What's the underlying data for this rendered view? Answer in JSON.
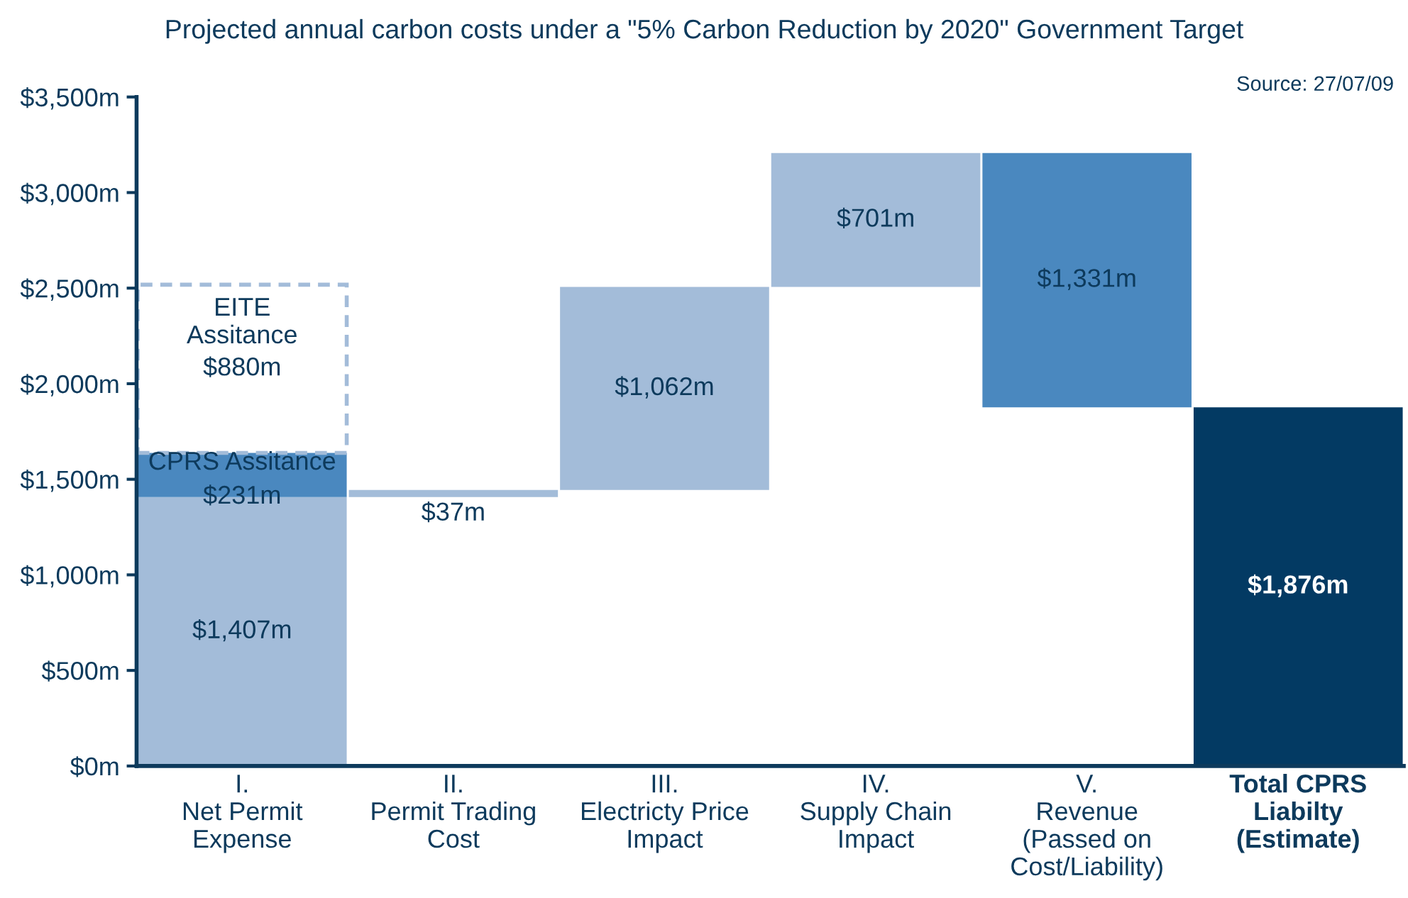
{
  "chart_data": {
    "type": "bar",
    "title": "Projected annual carbon costs under a \"5% Carbon Reduction by 2020\" Government Target",
    "annotations": [
      "Source: 27/07/09"
    ],
    "categories": [
      "I.\nNet Permit\nExpense",
      "II.\nPermit Trading\nCost",
      "III.\nElectricty Price\nImpact",
      "IV.\nSupply Chain\nImpact",
      "V.\nRevenue\n(Passed on\nCost/Liability)",
      "Total CPRS\nLiabilty\n(Estimate)"
    ],
    "series": [
      {
        "color": "#a3bcd9",
        "values": [
          1407,
          37,
          1062,
          701,
          null,
          null
        ],
        "base": [
          0,
          1407,
          1444,
          2506,
          null,
          null
        ],
        "value_labels": [
          "$1,407m",
          "$37m",
          "$1,062m",
          "$701m",
          null,
          null
        ]
      },
      {
        "name": "CPRS Assitance",
        "color": "#4a88bf",
        "values": [
          231,
          null,
          null,
          null,
          null,
          null
        ],
        "base": [
          1407,
          null,
          null,
          null,
          null,
          null
        ],
        "value_labels": [
          "$231m",
          null,
          null,
          null,
          null,
          null
        ]
      },
      {
        "color": "#4a88bf",
        "values": [
          null,
          null,
          null,
          null,
          1331,
          null
        ],
        "base": [
          null,
          null,
          null,
          null,
          1876,
          null
        ],
        "value_labels": [
          null,
          null,
          null,
          null,
          "$1,331m",
          null
        ]
      },
      {
        "color": "#033a63",
        "values": [
          null,
          null,
          null,
          null,
          null,
          1876
        ],
        "base": [
          null,
          null,
          null,
          null,
          null,
          0
        ],
        "value_labels": [
          null,
          null,
          null,
          null,
          null,
          "$1,876m"
        ]
      },
      {
        "name": "EITE\nAssitance",
        "color": "#a3bcd9",
        "line_style": "dashed",
        "values": [
          880,
          null,
          null,
          null,
          null,
          null
        ],
        "base": [
          1638,
          null,
          null,
          null,
          null,
          null
        ],
        "value_labels": [
          "$880m",
          null,
          null,
          null,
          null,
          null
        ]
      }
    ],
    "ylim": [
      0,
      3500
    ],
    "yticks": [
      {
        "value": 0,
        "label": "$0m"
      },
      {
        "value": 500,
        "label": "$500m"
      },
      {
        "value": 1000,
        "label": "$1,000m"
      },
      {
        "value": 1500,
        "label": "$1,500m"
      },
      {
        "value": 2000,
        "label": "$2,000m"
      },
      {
        "value": 2500,
        "label": "$2,500m"
      },
      {
        "value": 3000,
        "label": "$3,000m"
      },
      {
        "value": 3500,
        "label": "$3,500m"
      }
    ],
    "grid": false,
    "legend": false
  }
}
